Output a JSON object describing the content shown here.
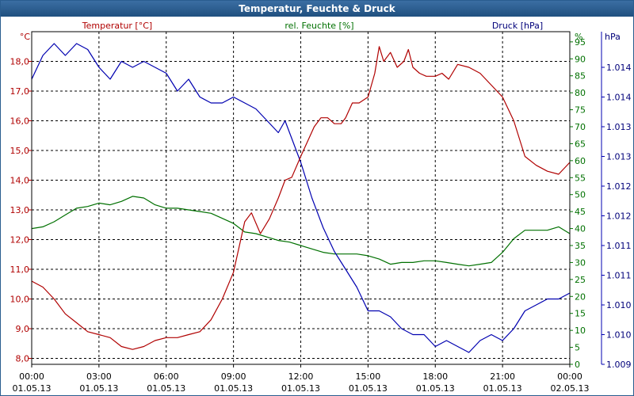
{
  "chart_data": {
    "type": "line",
    "title": "Temperatur, Feuchte & Druck",
    "series_labels": {
      "temperature": "Temperatur [°C]",
      "humidity": "rel. Feuchte [%]",
      "pressure": "Druck [hPa]"
    },
    "axes": {
      "left": {
        "unit": "°C",
        "ylim": [
          7.8,
          19.0
        ],
        "ticks": [
          "8,0",
          "9,0",
          "10,0",
          "11,0",
          "12,0",
          "13,0",
          "14,0",
          "15,0",
          "16,0",
          "17,0",
          "18,0"
        ],
        "tick_values": [
          8,
          9,
          10,
          11,
          12,
          13,
          14,
          15,
          16,
          17,
          18
        ]
      },
      "right1": {
        "unit": "%",
        "ylim": [
          0,
          98
        ],
        "ticks": [
          "0",
          "5",
          "10",
          "15",
          "20",
          "25",
          "30",
          "35",
          "40",
          "45",
          "50",
          "55",
          "60",
          "65",
          "70",
          "75",
          "80",
          "85",
          "90",
          "95"
        ],
        "tick_values": [
          0,
          5,
          10,
          15,
          20,
          25,
          30,
          35,
          40,
          45,
          50,
          55,
          60,
          65,
          70,
          75,
          80,
          85,
          90,
          95
        ]
      },
      "right2": {
        "unit": "hPa",
        "ylim": [
          1009.0,
          1014.6
        ],
        "ticks": [
          "1.009",
          "1.010",
          "1.010",
          "1.011",
          "1.011",
          "1.012",
          "1.012",
          "1.013",
          "1.013",
          "1.014",
          "1.014"
        ],
        "tick_values": [
          1009.0,
          1009.5,
          1010.0,
          1010.5,
          1011.0,
          1011.5,
          1012.0,
          1012.5,
          1013.0,
          1013.5,
          1014.0
        ]
      }
    },
    "x_ticks": [
      {
        "time": "00:00",
        "date": "01.05.13"
      },
      {
        "time": "03:00",
        "date": "01.05.13"
      },
      {
        "time": "06:00",
        "date": "01.05.13"
      },
      {
        "time": "09:00",
        "date": "01.05.13"
      },
      {
        "time": "12:00",
        "date": "01.05.13"
      },
      {
        "time": "15:00",
        "date": "01.05.13"
      },
      {
        "time": "18:00",
        "date": "01.05.13"
      },
      {
        "time": "21:00",
        "date": "01.05.13"
      },
      {
        "time": "00:00",
        "date": "02.05.13"
      }
    ],
    "xlim_hours": [
      0,
      24
    ],
    "grid": true,
    "colors": {
      "temperature": "#b00000",
      "humidity": "#007000",
      "pressure": "#0000b0",
      "axis": "#000000",
      "grid": "#000000",
      "title_bg": "#2a5d8f"
    },
    "temperature": {
      "x": [
        0,
        0.5,
        1,
        1.5,
        2,
        2.5,
        3,
        3.5,
        4,
        4.5,
        5,
        5.5,
        6,
        6.5,
        7,
        7.5,
        8,
        8.5,
        9,
        9.5,
        9.8,
        10.2,
        10.6,
        11,
        11.3,
        11.6,
        12,
        12.3,
        12.6,
        12.9,
        13.2,
        13.5,
        13.8,
        14,
        14.3,
        14.6,
        15,
        15.3,
        15.5,
        15.7,
        16,
        16.3,
        16.6,
        16.8,
        17,
        17.3,
        17.6,
        18,
        18.3,
        18.6,
        19,
        19.5,
        20,
        20.5,
        21,
        21.5,
        22,
        22.5,
        23,
        23.5,
        24
      ],
      "values": [
        10.6,
        10.4,
        10.0,
        9.5,
        9.2,
        8.9,
        8.8,
        8.7,
        8.4,
        8.3,
        8.4,
        8.6,
        8.7,
        8.7,
        8.8,
        8.9,
        9.3,
        10.0,
        10.9,
        12.6,
        12.9,
        12.2,
        12.7,
        13.4,
        14.0,
        14.1,
        14.8,
        15.3,
        15.8,
        16.1,
        16.1,
        15.9,
        15.9,
        16.1,
        16.6,
        16.6,
        16.8,
        17.6,
        18.5,
        18.0,
        18.3,
        17.8,
        18.0,
        18.4,
        17.8,
        17.6,
        17.5,
        17.5,
        17.6,
        17.4,
        17.9,
        17.8,
        17.6,
        17.2,
        16.8,
        16.0,
        14.8,
        14.5,
        14.3,
        14.2,
        14.6
      ]
    },
    "humidity": {
      "x": [
        0,
        0.5,
        1,
        1.5,
        2,
        2.5,
        3,
        3.5,
        4,
        4.5,
        5,
        5.5,
        6,
        6.5,
        7,
        7.5,
        8,
        8.5,
        9,
        9.5,
        10,
        10.5,
        11,
        11.5,
        12,
        12.5,
        13,
        13.5,
        14,
        14.5,
        15,
        15.5,
        16,
        16.5,
        17,
        17.5,
        18,
        18.5,
        19,
        19.5,
        20,
        20.5,
        21,
        21.5,
        22,
        22.5,
        23,
        23.5,
        24
      ],
      "values": [
        40,
        40.5,
        42,
        44,
        46,
        46.5,
        47.5,
        47,
        48,
        49.5,
        49,
        47,
        46,
        46,
        45.5,
        45,
        44.5,
        43,
        41.5,
        39,
        38.5,
        37.5,
        36.5,
        36,
        35,
        34,
        33,
        32.5,
        32.5,
        32.5,
        32,
        31,
        29.5,
        30,
        30,
        30.5,
        30.5,
        30,
        29.5,
        29,
        29.5,
        30,
        33,
        37,
        39.5,
        39.5,
        39.5,
        40.5,
        38.5
      ]
    },
    "pressure": {
      "x": [
        0,
        0.5,
        1,
        1.5,
        2,
        2.5,
        3,
        3.5,
        4,
        4.5,
        5,
        5.5,
        6,
        6.5,
        7,
        7.5,
        8,
        8.5,
        9,
        9.5,
        10,
        10.5,
        11,
        11.3,
        11.6,
        12,
        12.5,
        13,
        13.5,
        14,
        14.5,
        15,
        15.5,
        16,
        16.5,
        17,
        17.5,
        18,
        18.5,
        19,
        19.5,
        20,
        20.5,
        21,
        21.5,
        22,
        22.5,
        23,
        23.5,
        24
      ],
      "values": [
        1013.8,
        1014.2,
        1014.4,
        1014.2,
        1014.4,
        1014.3,
        1014.0,
        1013.8,
        1014.1,
        1014.0,
        1014.1,
        1014.0,
        1013.9,
        1013.6,
        1013.8,
        1013.5,
        1013.4,
        1013.4,
        1013.5,
        1013.4,
        1013.3,
        1013.1,
        1012.9,
        1013.1,
        1012.8,
        1012.4,
        1011.8,
        1011.3,
        1010.9,
        1010.6,
        1010.3,
        1009.9,
        1009.9,
        1009.8,
        1009.6,
        1009.5,
        1009.5,
        1009.3,
        1009.4,
        1009.3,
        1009.2,
        1009.4,
        1009.5,
        1009.4,
        1009.6,
        1009.9,
        1010.0,
        1010.1,
        1010.1,
        1010.2
      ]
    }
  }
}
